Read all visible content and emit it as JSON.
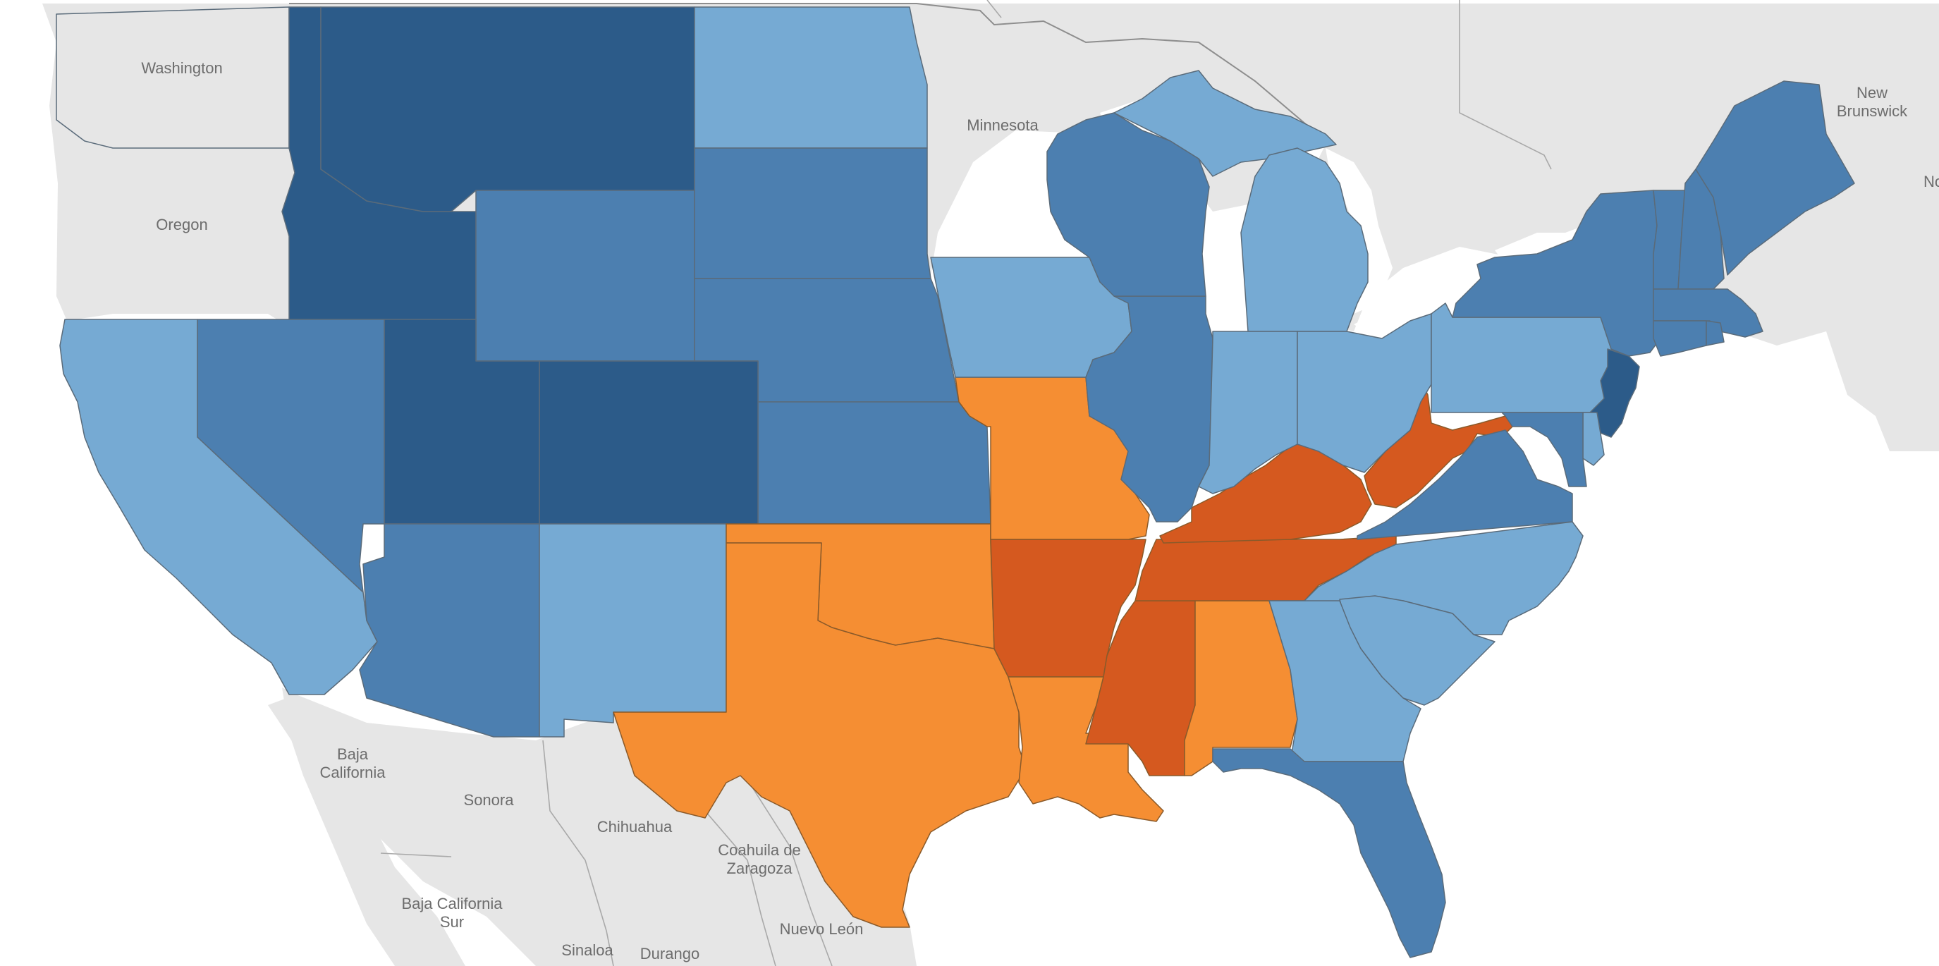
{
  "map": {
    "colors": {
      "water": "#ffffff",
      "land": "#e6e6e6",
      "dark_blue": "#2c5b89",
      "mid_blue": "#4c7fb0",
      "light_blue": "#76aad3",
      "orange": "#f58e33",
      "dark_orange": "#d5591f"
    },
    "place_labels": [
      {
        "id": "washington",
        "lines": [
          "Washington"
        ]
      },
      {
        "id": "oregon",
        "lines": [
          "Oregon"
        ]
      },
      {
        "id": "minnesota",
        "lines": [
          "Minnesota"
        ]
      },
      {
        "id": "new-brunswick",
        "lines": [
          "New",
          "Brunswick"
        ]
      },
      {
        "id": "nova-cut",
        "lines": [
          "No"
        ]
      },
      {
        "id": "baja-california",
        "lines": [
          "Baja",
          "California"
        ]
      },
      {
        "id": "sonora",
        "lines": [
          "Sonora"
        ]
      },
      {
        "id": "chihuahua",
        "lines": [
          "Chihuahua"
        ]
      },
      {
        "id": "coahuila",
        "lines": [
          "Coahuila de",
          "Zaragoza"
        ]
      },
      {
        "id": "nuevo-leon",
        "lines": [
          "Nuevo León"
        ]
      },
      {
        "id": "baja-california-sur",
        "lines": [
          "Baja California",
          "Sur"
        ]
      },
      {
        "id": "sinaloa",
        "lines": [
          "Sinaloa"
        ]
      },
      {
        "id": "durango",
        "lines": [
          "Durango"
        ]
      }
    ],
    "regions": [
      {
        "id": "idaho",
        "color": "dark_blue"
      },
      {
        "id": "montana",
        "color": "dark_blue"
      },
      {
        "id": "utah",
        "color": "dark_blue"
      },
      {
        "id": "colorado",
        "color": "dark_blue"
      },
      {
        "id": "new-jersey",
        "color": "dark_blue"
      },
      {
        "id": "nevada",
        "color": "mid_blue"
      },
      {
        "id": "wyoming",
        "color": "mid_blue"
      },
      {
        "id": "south-dakota",
        "color": "mid_blue"
      },
      {
        "id": "nebraska",
        "color": "mid_blue"
      },
      {
        "id": "kansas",
        "color": "mid_blue"
      },
      {
        "id": "arizona",
        "color": "mid_blue"
      },
      {
        "id": "wisconsin",
        "color": "mid_blue"
      },
      {
        "id": "illinois",
        "color": "mid_blue"
      },
      {
        "id": "new-york",
        "color": "mid_blue"
      },
      {
        "id": "vermont",
        "color": "mid_blue"
      },
      {
        "id": "new-hampshire",
        "color": "mid_blue"
      },
      {
        "id": "maine",
        "color": "mid_blue"
      },
      {
        "id": "massachusetts",
        "color": "mid_blue"
      },
      {
        "id": "connecticut",
        "color": "mid_blue"
      },
      {
        "id": "rhode-island",
        "color": "mid_blue"
      },
      {
        "id": "maryland",
        "color": "mid_blue"
      },
      {
        "id": "virginia",
        "color": "mid_blue"
      },
      {
        "id": "florida",
        "color": "mid_blue"
      },
      {
        "id": "california",
        "color": "light_blue"
      },
      {
        "id": "north-dakota",
        "color": "light_blue"
      },
      {
        "id": "iowa",
        "color": "light_blue"
      },
      {
        "id": "michigan-upper",
        "color": "light_blue"
      },
      {
        "id": "michigan-lower",
        "color": "light_blue"
      },
      {
        "id": "indiana",
        "color": "light_blue"
      },
      {
        "id": "ohio",
        "color": "light_blue"
      },
      {
        "id": "pennsylvania",
        "color": "light_blue"
      },
      {
        "id": "delaware",
        "color": "light_blue"
      },
      {
        "id": "new-mexico",
        "color": "light_blue"
      },
      {
        "id": "north-carolina",
        "color": "light_blue"
      },
      {
        "id": "south-carolina",
        "color": "light_blue"
      },
      {
        "id": "georgia",
        "color": "light_blue"
      },
      {
        "id": "missouri",
        "color": "orange"
      },
      {
        "id": "oklahoma",
        "color": "orange"
      },
      {
        "id": "texas",
        "color": "orange"
      },
      {
        "id": "louisiana",
        "color": "orange"
      },
      {
        "id": "alabama",
        "color": "orange"
      },
      {
        "id": "arkansas",
        "color": "dark_orange"
      },
      {
        "id": "mississippi",
        "color": "dark_orange"
      },
      {
        "id": "tennessee",
        "color": "dark_orange"
      },
      {
        "id": "kentucky",
        "color": "dark_orange"
      },
      {
        "id": "west-virginia",
        "color": "dark_orange"
      }
    ]
  }
}
